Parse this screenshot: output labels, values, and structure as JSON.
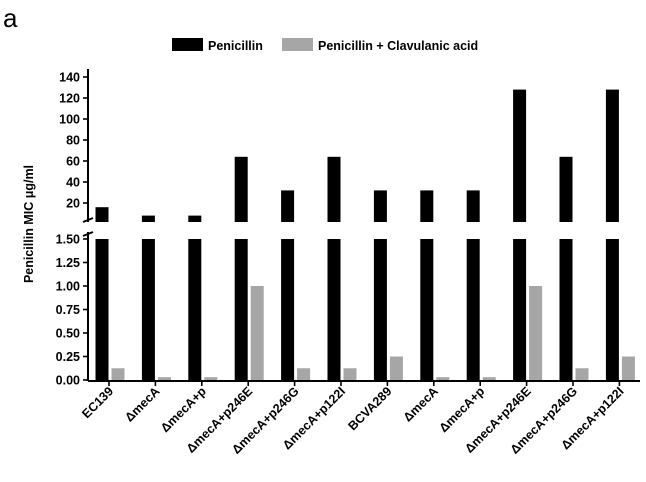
{
  "panel_label": "a",
  "colors": {
    "penicillin": "#000000",
    "penicillin_clav": "#a6a6a6"
  },
  "chart_data": {
    "type": "bar",
    "ylabel": "Penicillin MIC μg/ml",
    "categories": [
      "EC139",
      "ΔmecA",
      "ΔmecA+p",
      "ΔmecA+p246E",
      "ΔmecA+p246G",
      "ΔmecA+p122I",
      "BCVA289",
      "ΔmecA",
      "ΔmecA+p",
      "ΔmecA+p246E",
      "ΔmecA+p246G",
      "ΔmecA+p122I"
    ],
    "series": [
      {
        "name": "Penicillin",
        "values": [
          16,
          8,
          8,
          64,
          32,
          64,
          32,
          32,
          32,
          128,
          64,
          128
        ]
      },
      {
        "name": "Penicillin + Clavulanic acid",
        "values": [
          0.125,
          0.03,
          0.03,
          1,
          0.125,
          0.125,
          0.25,
          0.03,
          0.03,
          1,
          0.125,
          0.25
        ]
      }
    ],
    "y_axis_break": true,
    "ylim_lower": [
      0,
      1.5
    ],
    "ylim_upper": [
      1.5,
      145
    ],
    "yticks_lower": [
      "0.00",
      "0.25",
      "0.50",
      "0.75",
      "1.00",
      "1.25",
      "1.50"
    ],
    "yticks_upper": [
      "20",
      "40",
      "60",
      "80",
      "100",
      "120",
      "140"
    ],
    "legend_position": "top",
    "grid": false
  }
}
